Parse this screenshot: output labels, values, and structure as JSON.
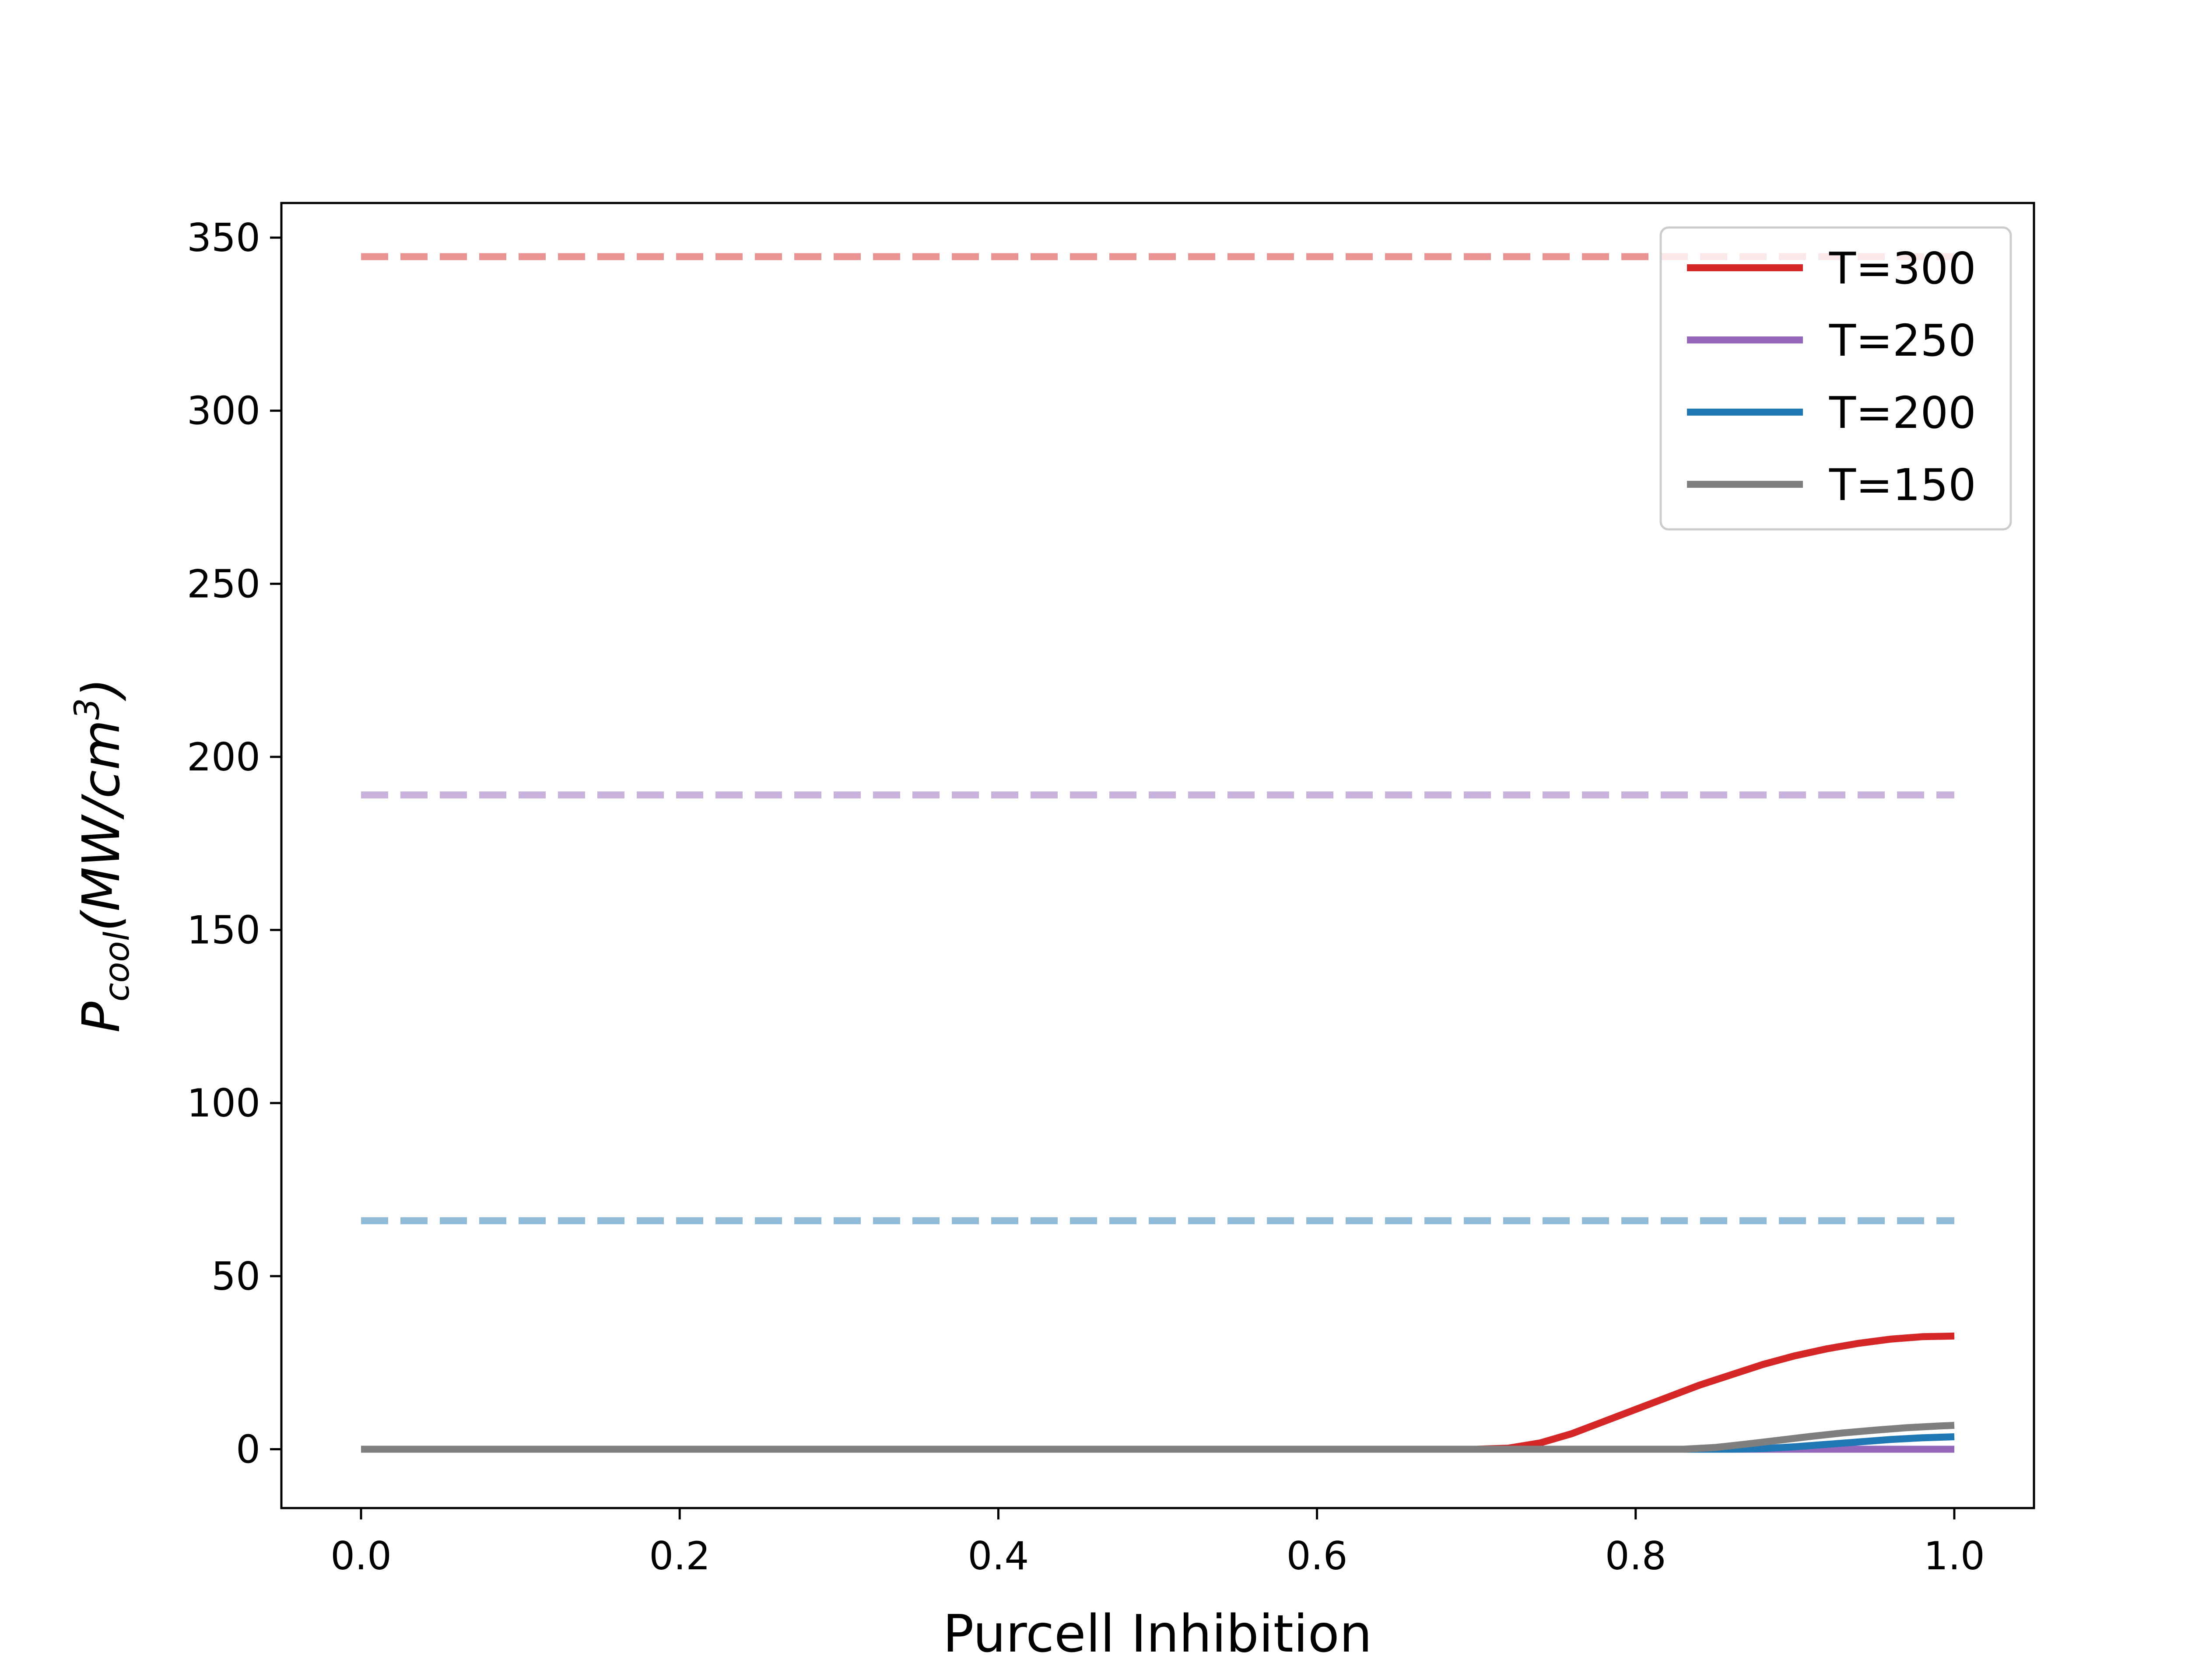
{
  "chart_data": {
    "type": "line",
    "title": "",
    "xlabel": "Purcell  Inhibition",
    "ylabel": {
      "base": "P",
      "subscript": "cool",
      "rest": "(MW/cm",
      "superscript": "3",
      "close": ")"
    },
    "xlim": [
      -0.05,
      1.05
    ],
    "ylim": [
      -17,
      360
    ],
    "xticks": [
      0.0,
      0.2,
      0.4,
      0.6,
      0.8,
      1.0
    ],
    "xtick_labels": [
      "0.0",
      "0.2",
      "0.4",
      "0.6",
      "0.8",
      "1.0"
    ],
    "yticks": [
      0,
      50,
      100,
      150,
      200,
      250,
      300,
      350
    ],
    "ytick_labels": [
      "0",
      "50",
      "100",
      "150",
      "200",
      "250",
      "300",
      "350"
    ],
    "grid": false,
    "legend_position": "top-right",
    "series": [
      {
        "name": "T=300",
        "color": "#d62728",
        "x": [
          0.0,
          0.7,
          0.72,
          0.74,
          0.76,
          0.78,
          0.8,
          0.82,
          0.84,
          0.86,
          0.88,
          0.9,
          0.92,
          0.94,
          0.96,
          0.98,
          1.0
        ],
        "y": [
          0,
          0,
          0.3,
          1.8,
          4.5,
          8.0,
          11.5,
          15.0,
          18.5,
          21.5,
          24.5,
          27.0,
          29.0,
          30.6,
          31.8,
          32.5,
          32.7
        ],
        "reference": 344.5
      },
      {
        "name": "T=250",
        "color": "#9467bd",
        "x": [
          0.0,
          1.0
        ],
        "y": [
          0,
          0
        ],
        "reference": 189.0
      },
      {
        "name": "T=200",
        "color": "#1f77b4",
        "x": [
          0.0,
          0.86,
          0.88,
          0.9,
          0.92,
          0.94,
          0.96,
          0.98,
          1.0
        ],
        "y": [
          0,
          0,
          0.2,
          0.7,
          1.4,
          2.1,
          2.8,
          3.3,
          3.6
        ],
        "reference": 66.0
      },
      {
        "name": "T=150",
        "color": "#7f7f7f",
        "x": [
          0.0,
          0.83,
          0.85,
          0.87,
          0.89,
          0.91,
          0.93,
          0.95,
          0.97,
          0.99,
          1.0
        ],
        "y": [
          0,
          0,
          0.5,
          1.5,
          2.6,
          3.7,
          4.7,
          5.5,
          6.2,
          6.7,
          6.9
        ],
        "reference": 0.0
      }
    ]
  }
}
